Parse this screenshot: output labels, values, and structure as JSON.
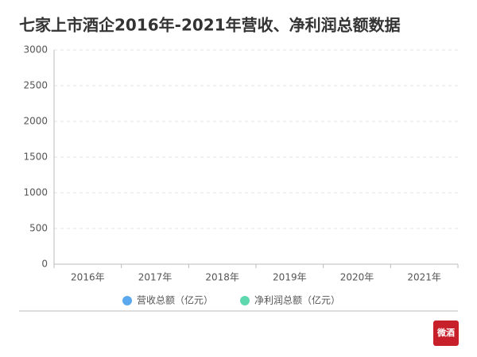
{
  "chart_data": {
    "type": "bar",
    "title": "七家上市酒企2016年-2021年营收、净利润总额数据",
    "categories": [
      "2016年",
      "2017年",
      "2018年",
      "2019年",
      "2020年",
      "2021年"
    ],
    "series": [
      {
        "name": "营收总额（亿元）",
        "color": "#5ba8ee",
        "values": [
          null,
          null,
          null,
          null,
          null,
          null
        ]
      },
      {
        "name": "净利润总额（亿元）",
        "color": "#5fd8b0",
        "values": [
          null,
          null,
          null,
          null,
          null,
          null
        ]
      }
    ],
    "ylim": [
      0,
      3000
    ],
    "yticks": [
      0,
      500,
      1000,
      1500,
      2000,
      2500,
      3000
    ],
    "grid": true
  },
  "logo": "微酒"
}
